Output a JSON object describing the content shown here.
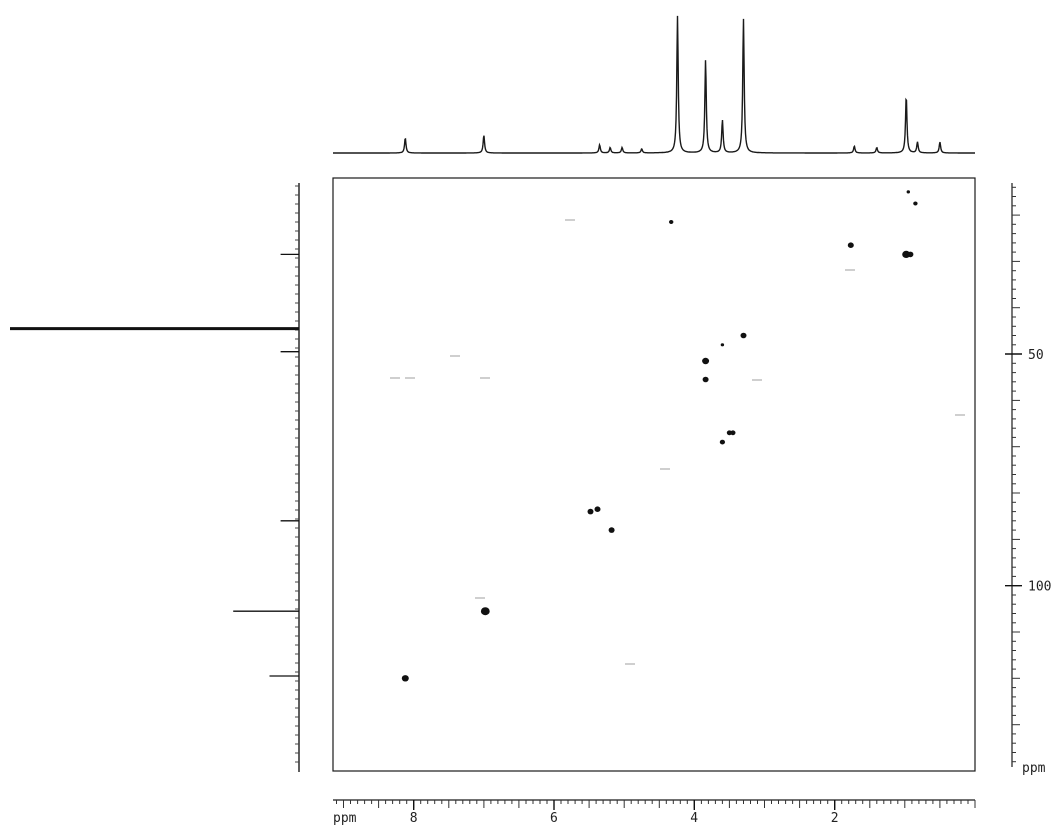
{
  "chart_data": {
    "type": "scatter",
    "title": "",
    "x_axis": {
      "label": "ppm",
      "range": [
        9.15,
        0
      ],
      "reversed": true,
      "tick_labels": [
        "8",
        "6",
        "4",
        "2"
      ],
      "tick_values": [
        8,
        6,
        4,
        2
      ]
    },
    "y_axis": {
      "label": "ppm",
      "range": [
        12,
        140
      ],
      "reversed": true,
      "tick_labels": [
        "50",
        "100"
      ],
      "tick_values": [
        50,
        100
      ],
      "position": "right"
    },
    "grid": false,
    "top_projection": {
      "description_type": "1H spectrum",
      "peaks": [
        {
          "ppm": 8.12,
          "height": 0.11
        },
        {
          "ppm": 7.0,
          "height": 0.13
        },
        {
          "ppm": 5.35,
          "height": 0.06
        },
        {
          "ppm": 5.2,
          "height": 0.04
        },
        {
          "ppm": 5.03,
          "height": 0.04
        },
        {
          "ppm": 4.75,
          "height": 0.03
        },
        {
          "ppm": 4.24,
          "height": 1.0
        },
        {
          "ppm": 3.84,
          "height": 0.68
        },
        {
          "ppm": 3.6,
          "height": 0.24
        },
        {
          "ppm": 3.3,
          "height": 0.98
        },
        {
          "ppm": 1.72,
          "height": 0.05
        },
        {
          "ppm": 1.4,
          "height": 0.04
        },
        {
          "ppm": 0.98,
          "height": 0.42
        },
        {
          "ppm": 0.82,
          "height": 0.08
        },
        {
          "ppm": 0.5,
          "height": 0.08
        }
      ]
    },
    "left_projection": {
      "description_type": "13C spectrum",
      "peaks": [
        {
          "ppm": 28.5,
          "height": 0.03
        },
        {
          "ppm": 44.5,
          "height": 1.0
        },
        {
          "ppm": 49.5,
          "height": 0.03
        },
        {
          "ppm": 86.0,
          "height": 0.03
        },
        {
          "ppm": 105.5,
          "height": 0.2
        },
        {
          "ppm": 119.5,
          "height": 0.07
        }
      ]
    },
    "cross_peaks": [
      {
        "x": 0.95,
        "y": 15.0,
        "size": 1.0
      },
      {
        "x": 0.85,
        "y": 17.5,
        "size": 1.5
      },
      {
        "x": 4.33,
        "y": 21.5,
        "size": 1.5
      },
      {
        "x": 1.77,
        "y": 26.5,
        "size": 2.5
      },
      {
        "x": 0.98,
        "y": 28.5,
        "size": 3.5
      },
      {
        "x": 0.92,
        "y": 28.5,
        "size": 2.5
      },
      {
        "x": 3.3,
        "y": 46.0,
        "size": 2.5
      },
      {
        "x": 3.6,
        "y": 48.0,
        "size": 1.0
      },
      {
        "x": 3.84,
        "y": 51.5,
        "size": 3.0
      },
      {
        "x": 3.84,
        "y": 55.5,
        "size": 2.5
      },
      {
        "x": 3.5,
        "y": 67.0,
        "size": 2.0
      },
      {
        "x": 3.45,
        "y": 67.0,
        "size": 2.0
      },
      {
        "x": 3.6,
        "y": 69.0,
        "size": 2.0
      },
      {
        "x": 5.48,
        "y": 84.0,
        "size": 2.5
      },
      {
        "x": 5.38,
        "y": 83.5,
        "size": 2.5
      },
      {
        "x": 5.18,
        "y": 88.0,
        "size": 2.5
      },
      {
        "x": 6.98,
        "y": 105.5,
        "size": 4.0
      },
      {
        "x": 8.12,
        "y": 120.0,
        "size": 3.0
      }
    ]
  }
}
